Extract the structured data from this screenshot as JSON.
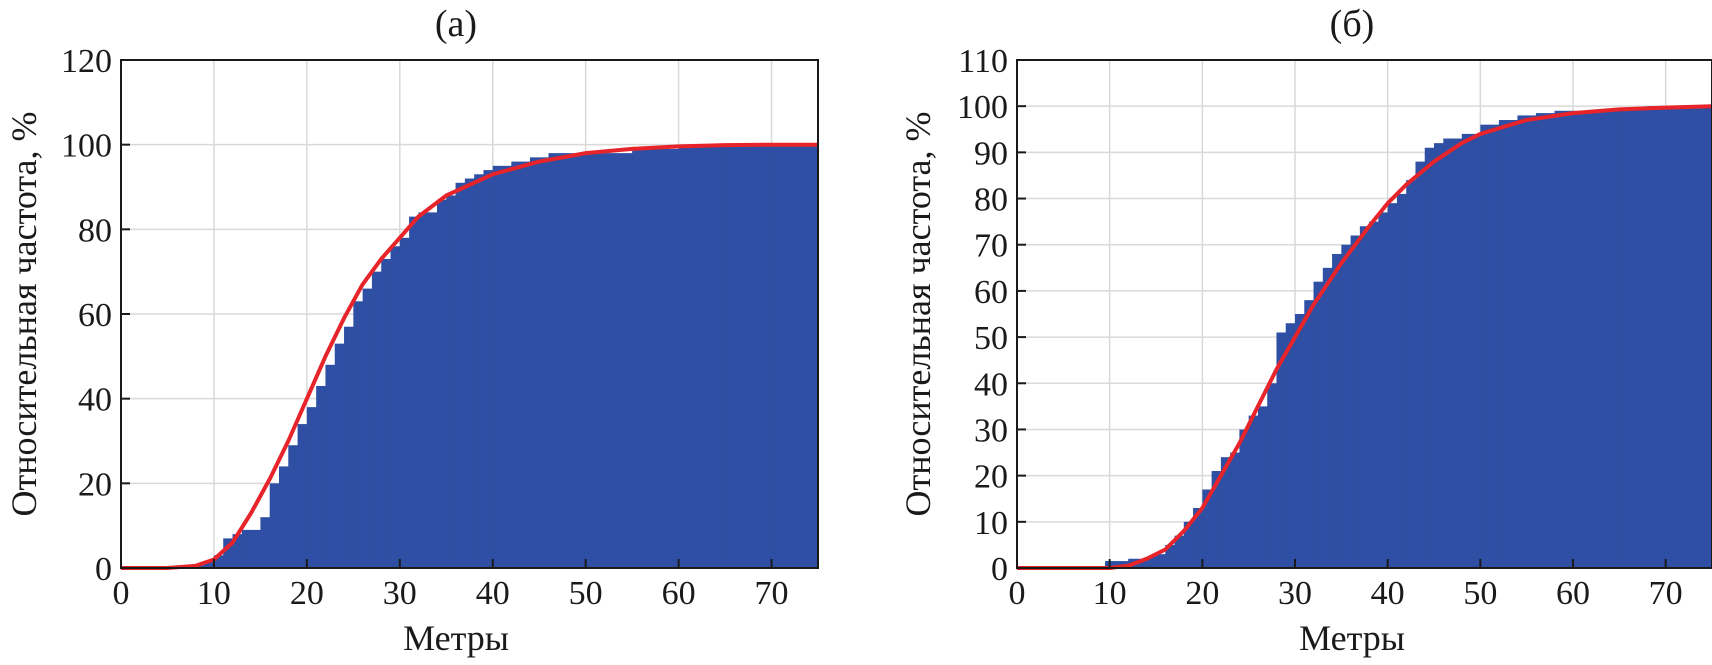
{
  "chart_data": [
    {
      "type": "bar",
      "title": "(а)",
      "xlabel": "Метры",
      "ylabel": "Относительная частота, %",
      "xlim": [
        0,
        75
      ],
      "ylim": [
        0,
        120
      ],
      "xticks": [
        0,
        10,
        20,
        30,
        40,
        50,
        60,
        70
      ],
      "yticks": [
        0,
        20,
        40,
        60,
        80,
        100,
        120
      ],
      "grid": true,
      "series": [
        {
          "kind": "empirical-cumulative",
          "color": "#2e4fa3",
          "x": [
            0,
            7,
            8,
            9,
            10,
            11,
            12,
            13,
            14,
            15,
            16,
            17,
            18,
            19,
            20,
            21,
            22,
            23,
            24,
            25,
            26,
            27,
            28,
            29,
            30,
            31,
            32,
            33,
            34,
            35,
            36,
            37,
            38,
            39,
            40,
            42,
            44,
            46,
            48,
            50,
            55,
            60,
            65,
            70,
            75
          ],
          "y": [
            0,
            0.5,
            1,
            1.5,
            3,
            7,
            8,
            9,
            9,
            12,
            20,
            24,
            29,
            34,
            38,
            43,
            48,
            53,
            57,
            63,
            66,
            70,
            73,
            76,
            78,
            83,
            84,
            84,
            87,
            88,
            91,
            92,
            93,
            94,
            95,
            96,
            97,
            98,
            98,
            98,
            99,
            99.5,
            99.8,
            100,
            100
          ]
        },
        {
          "kind": "fitted-cdf",
          "color": "#e8242b",
          "x": [
            0,
            5,
            8,
            10,
            12,
            14,
            16,
            18,
            20,
            22,
            24,
            26,
            28,
            30,
            32,
            35,
            40,
            45,
            50,
            55,
            60,
            65,
            70,
            75
          ],
          "y": [
            0,
            0,
            0.5,
            2,
            6,
            13,
            21,
            30,
            40,
            50,
            59,
            67,
            73,
            78,
            83,
            88,
            93,
            96,
            98,
            99,
            99.6,
            99.9,
            100,
            100
          ]
        }
      ]
    },
    {
      "type": "bar",
      "title": "(б)",
      "xlabel": "Метры",
      "ylabel": "Относительная частота, %",
      "xlim": [
        0,
        75
      ],
      "ylim": [
        0,
        110
      ],
      "xticks": [
        0,
        10,
        20,
        30,
        40,
        50,
        60,
        70
      ],
      "yticks": [
        0,
        10,
        20,
        30,
        40,
        50,
        60,
        70,
        80,
        90,
        100,
        110
      ],
      "grid": true,
      "series": [
        {
          "kind": "empirical-cumulative",
          "color": "#2e4fa3",
          "x": [
            0,
            9.5,
            12,
            14,
            15,
            16,
            17,
            18,
            19,
            20,
            21,
            22,
            23,
            24,
            25,
            26,
            27,
            28,
            29,
            30,
            31,
            32,
            33,
            34,
            35,
            36,
            37,
            38,
            39,
            40,
            41,
            42,
            43,
            44,
            45,
            46,
            48,
            50,
            52,
            54,
            56,
            58,
            60,
            65,
            68,
            70,
            75
          ],
          "y": [
            0,
            1.5,
            2,
            2.5,
            3,
            5,
            7,
            10,
            13,
            17,
            21,
            24,
            25,
            30,
            33,
            35,
            40,
            51,
            53,
            55,
            58,
            62,
            65,
            68,
            70,
            72,
            74,
            75,
            77,
            79,
            81,
            84,
            88,
            91,
            92,
            93,
            94,
            96,
            97,
            98,
            98.5,
            99,
            99,
            99.5,
            100,
            100,
            100
          ]
        },
        {
          "kind": "fitted-cdf",
          "color": "#e8242b",
          "x": [
            0,
            10,
            12,
            14,
            16,
            18,
            20,
            22,
            24,
            26,
            28,
            30,
            32,
            35,
            38,
            40,
            42,
            45,
            48,
            50,
            55,
            60,
            65,
            70,
            75
          ],
          "y": [
            0,
            0,
            0.5,
            2,
            4,
            8,
            13,
            20,
            27,
            35,
            43,
            50,
            57,
            66,
            74,
            79,
            83,
            88,
            92,
            94,
            97,
            98.5,
            99.3,
            99.7,
            100
          ]
        }
      ]
    }
  ]
}
